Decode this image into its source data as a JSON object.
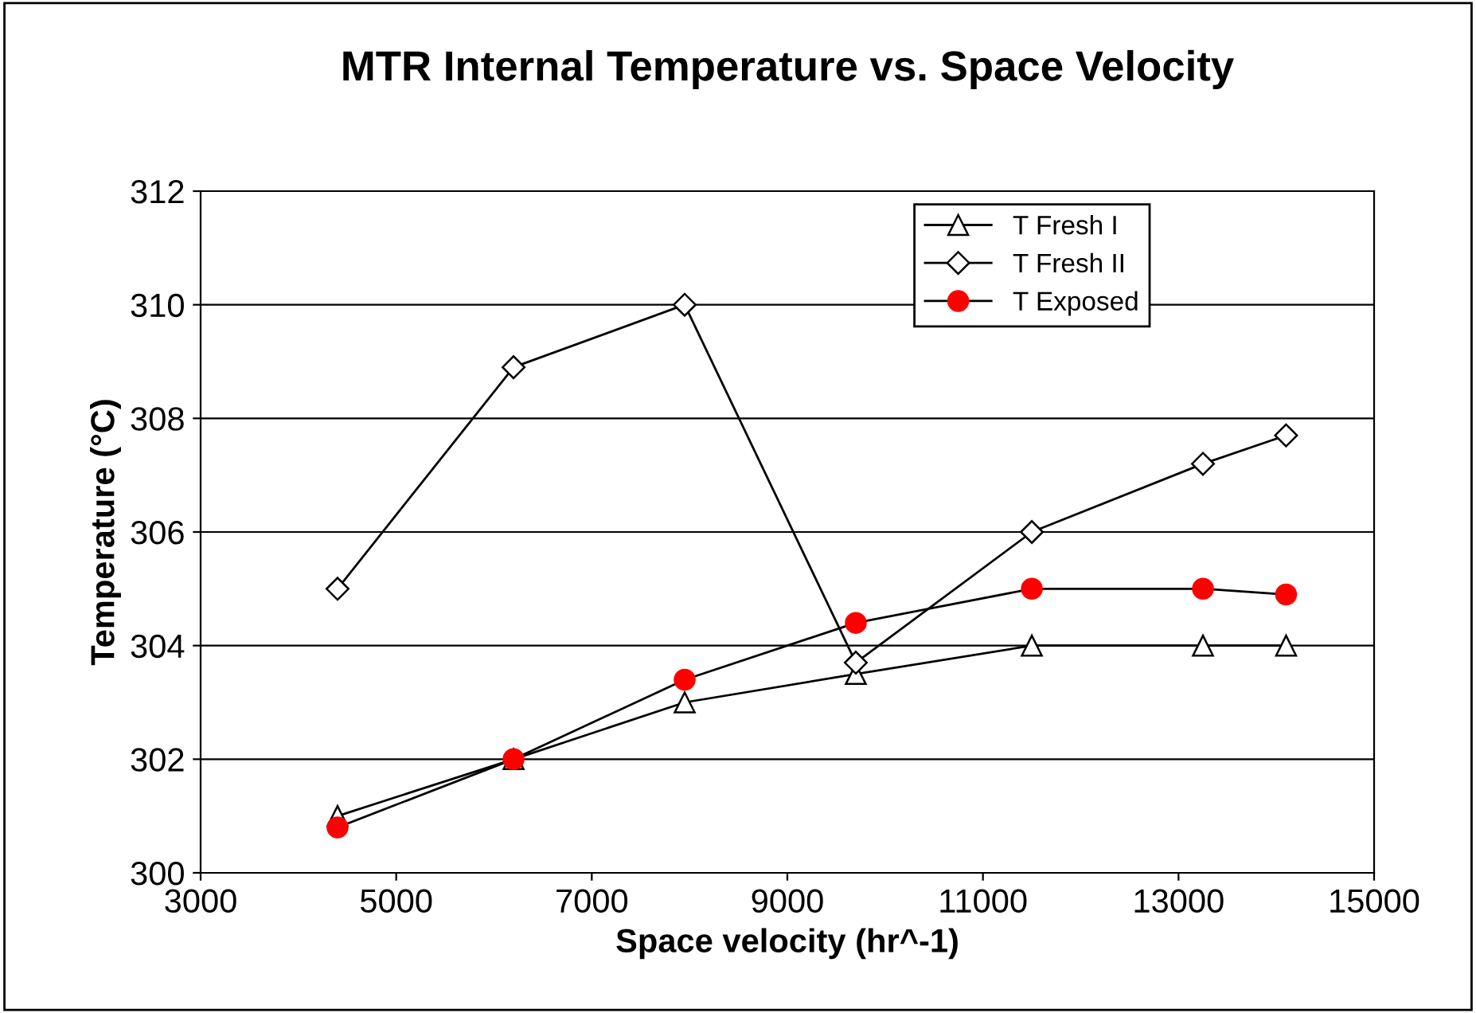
{
  "chart_data": {
    "type": "line",
    "title": "MTR Internal Temperature vs. Space Velocity",
    "xlabel": "Space velocity (hr^-1)",
    "ylabel": "Temperature (°C)",
    "x": [
      4400,
      6200,
      7950,
      9700,
      11500,
      13250,
      14100
    ],
    "series": [
      {
        "name": "T Fresh I",
        "color": "#000000",
        "marker": "triangle",
        "values": [
          301.0,
          302.0,
          303.0,
          303.5,
          304.0,
          304.0,
          304.0
        ]
      },
      {
        "name": "T Fresh II",
        "color": "#000000",
        "marker": "diamond",
        "values": [
          305.0,
          308.9,
          310.0,
          303.7,
          306.0,
          307.2,
          307.7
        ]
      },
      {
        "name": "T Exposed",
        "color": "#ff0000",
        "marker": "circle",
        "values": [
          300.8,
          302.0,
          303.4,
          304.4,
          305.0,
          305.0,
          304.9
        ]
      }
    ],
    "xlim": [
      3000,
      15000
    ],
    "xticks": [
      3000,
      5000,
      7000,
      9000,
      11000,
      13000,
      15000
    ],
    "ylim": [
      300,
      312
    ],
    "yticks": [
      300,
      302,
      304,
      306,
      308,
      310,
      312
    ],
    "grid": "y",
    "legend": "top right",
    "line_style": "solid"
  }
}
